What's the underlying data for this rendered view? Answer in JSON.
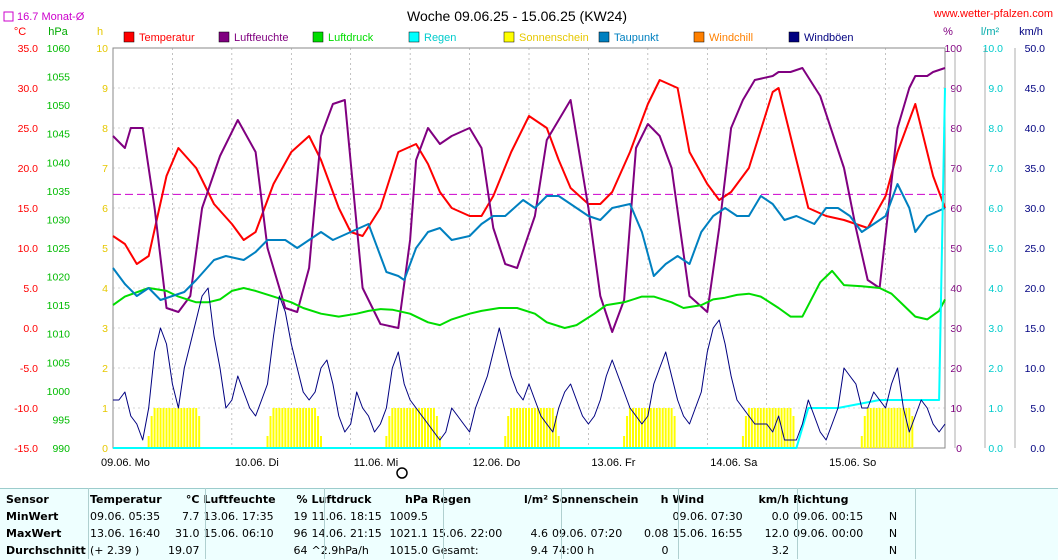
{
  "title": "Woche 09.06.25 - 15.06.25 (KW24)",
  "site": "www.wetter-pfalzen.com",
  "monthly_label": "16.7 Monat-Ø",
  "legend": [
    {
      "label": "Temperatur",
      "color": "#ff0000"
    },
    {
      "label": "Luftfeuchte",
      "color": "#800080"
    },
    {
      "label": "Luftdruck",
      "color": "#00dd00"
    },
    {
      "label": "Regen",
      "color": "#00ffff"
    },
    {
      "label": "Sonnenschein",
      "color": "#ffff00"
    },
    {
      "label": "Taupunkt",
      "color": "#0080c0"
    },
    {
      "label": "Windchill",
      "color": "#ff8000"
    },
    {
      "label": "Windböen",
      "color": "#000080"
    }
  ],
  "axis_units": {
    "temp": "°C",
    "pressure": "hPa",
    "sun": "h",
    "humidity": "%",
    "rain": "l/m²",
    "wind": "km/h"
  },
  "stats": {
    "headers": [
      "Sensor",
      "Temperatur",
      "°C",
      "Luftfeuchte",
      "%",
      "Luftdruck",
      "hPa",
      "Regen",
      "l/m²",
      "Sonnenschein",
      "h",
      "Wind",
      "km/h",
      "Richtung"
    ],
    "rows": [
      {
        "label": "MinWert",
        "temp_date": "09.06.  05:35",
        "temp": "7.7",
        "hum_date": "13.06.  17:35",
        "hum": "19",
        "press_date": "11.06.  18:15",
        "press": "1009.5",
        "rain_date": "",
        "rain": "",
        "sun_date": "",
        "sun": "",
        "wind_date": "09.06.  07:30",
        "wind": "0.0",
        "dir_date": "09.06.  00:15",
        "dir": "N"
      },
      {
        "label": "MaxWert",
        "temp_date": "13.06.  16:40",
        "temp": "31.0",
        "hum_date": "15.06.  06:10",
        "hum": "96",
        "press_date": "14.06.  21:15",
        "press": "1021.1",
        "rain_date": "15.06.  22:00",
        "rain": "4.6",
        "sun_date": "09.06.  07:20",
        "sun": "0.08",
        "wind_date": "15.06.  16:55",
        "wind": "12.0",
        "dir_date": "09.06.  00:00",
        "dir": "N"
      },
      {
        "label": "Durchschnitt",
        "temp_date": "(+ 2.39 )",
        "temp": "19.07",
        "hum_date": "",
        "hum": "64",
        "press_date": "^2.9hPa/h",
        "press": "1015.0",
        "rain_date": "Gesamt:",
        "rain": "9.4",
        "sun_date": "74:00 h",
        "sun": "0",
        "wind_date": "",
        "wind": "3.2",
        "dir_date": "",
        "dir": "N"
      }
    ]
  },
  "chart_data": {
    "type": "line",
    "title": "Woche 09.06.25 - 15.06.25 (KW24)",
    "x_labels": [
      "09.06. Mo",
      "10.06. Di",
      "11.06. Mi",
      "12.06. Do",
      "13.06. Fr",
      "14.06. Sa",
      "15.06. So"
    ],
    "x_range_days": [
      0,
      7
    ],
    "axes": {
      "temp": {
        "unit": "°C",
        "range": [
          -15,
          35
        ],
        "ticks": [
          "35.0",
          "30.0",
          "25.0",
          "20.0",
          "15.0",
          "10.0",
          "5.0",
          "0.0",
          "-5.0",
          "-10.0",
          "-15.0"
        ]
      },
      "pressure": {
        "unit": "hPa",
        "range": [
          990,
          1060
        ],
        "ticks": [
          "1060",
          "1055",
          "1050",
          "1045",
          "1040",
          "1035",
          "1030",
          "1025",
          "1020",
          "1015",
          "1010",
          "1005",
          "1000",
          "995",
          "990"
        ]
      },
      "sun": {
        "unit": "h",
        "range": [
          0,
          10
        ],
        "ticks": [
          "10",
          "9",
          "8",
          "7",
          "6",
          "5",
          "4",
          "3",
          "2",
          "1",
          "0"
        ]
      },
      "humidity": {
        "unit": "%",
        "range": [
          0,
          100
        ],
        "ticks": [
          "100",
          "90",
          "80",
          "70",
          "60",
          "50",
          "40",
          "30",
          "20",
          "10",
          "0"
        ]
      },
      "rain": {
        "unit": "l/m²",
        "range": [
          0,
          10
        ],
        "ticks": [
          "10.0",
          "9.0",
          "8.0",
          "7.0",
          "6.0",
          "5.0",
          "4.0",
          "3.0",
          "2.0",
          "1.0",
          "0.0"
        ]
      },
      "wind": {
        "unit": "km/h",
        "range": [
          0,
          50
        ],
        "ticks": [
          "50.0",
          "45.0",
          "40.0",
          "35.0",
          "30.0",
          "25.0",
          "20.0",
          "15.0",
          "10.0",
          "5.0",
          "0.0"
        ]
      }
    },
    "monthly_avg_temp": 16.7,
    "series": [
      {
        "name": "Temperatur",
        "axis": "temp",
        "color": "#ff0000",
        "x": [
          0,
          0.1,
          0.2,
          0.3,
          0.45,
          0.55,
          0.7,
          0.85,
          1.0,
          1.1,
          1.2,
          1.35,
          1.5,
          1.65,
          1.75,
          1.9,
          2.0,
          2.1,
          2.25,
          2.4,
          2.55,
          2.65,
          2.75,
          2.85,
          3.0,
          3.1,
          3.2,
          3.35,
          3.5,
          3.65,
          3.75,
          3.85,
          4.0,
          4.1,
          4.2,
          4.35,
          4.5,
          4.6,
          4.75,
          4.85,
          5.0,
          5.1,
          5.2,
          5.35,
          5.55,
          5.6,
          5.75,
          5.85,
          6.0,
          6.15,
          6.35,
          6.5,
          6.6,
          6.75,
          6.9,
          7.0
        ],
        "y": [
          11.5,
          10.5,
          8,
          9,
          19,
          22.5,
          20,
          15.5,
          13,
          11,
          12,
          18,
          22,
          24,
          21,
          15,
          12,
          11.5,
          15,
          22,
          23,
          20.5,
          17,
          15,
          14,
          14,
          16.5,
          22,
          26.5,
          25,
          21,
          17.5,
          15.5,
          15.5,
          17,
          22,
          28,
          31,
          30,
          22,
          18,
          16,
          17,
          20,
          29.5,
          30,
          21,
          15,
          14,
          13.5,
          12.5,
          16.5,
          22,
          28,
          19,
          15
        ]
      },
      {
        "name": "Luftfeuchte",
        "axis": "humidity",
        "color": "#800080",
        "x": [
          0,
          0.1,
          0.15,
          0.25,
          0.35,
          0.45,
          0.55,
          0.65,
          0.75,
          0.9,
          1.05,
          1.2,
          1.3,
          1.45,
          1.55,
          1.65,
          1.75,
          1.85,
          1.95,
          2.1,
          2.25,
          2.4,
          2.5,
          2.55,
          2.65,
          2.75,
          2.85,
          3.0,
          3.1,
          3.2,
          3.3,
          3.4,
          3.55,
          3.65,
          3.75,
          3.85,
          4.0,
          4.1,
          4.2,
          4.3,
          4.4,
          4.5,
          4.6,
          4.7,
          4.85,
          5.0,
          5.1,
          5.2,
          5.3,
          5.4,
          5.55,
          5.6,
          5.7,
          5.8,
          5.95,
          6.15,
          6.25,
          6.35,
          6.45,
          6.6,
          6.7,
          6.75,
          6.85,
          6.9,
          7.0
        ],
        "y": [
          78,
          75,
          80,
          80,
          60,
          35,
          34,
          38,
          60,
          73,
          82,
          74,
          50,
          35,
          34,
          45,
          78,
          86,
          87,
          40,
          31,
          30,
          52,
          72,
          80,
          76,
          78,
          80,
          75,
          55,
          46,
          45,
          58,
          77,
          82,
          87,
          60,
          38,
          29,
          37,
          75,
          81,
          78,
          70,
          38,
          34,
          55,
          80,
          87,
          92,
          93,
          94,
          94,
          95,
          88,
          70,
          55,
          42,
          40,
          80,
          90,
          93,
          93,
          94,
          95
        ]
      },
      {
        "name": "Luftdruck",
        "axis": "pressure",
        "color": "#00dd00",
        "x": [
          0,
          0.1,
          0.3,
          0.45,
          0.55,
          0.7,
          0.8,
          0.9,
          1.0,
          1.1,
          1.2,
          1.35,
          1.5,
          1.6,
          1.75,
          1.9,
          2.05,
          2.15,
          2.25,
          2.35,
          2.5,
          2.65,
          2.75,
          2.85,
          3.0,
          3.1,
          3.25,
          3.4,
          3.55,
          3.65,
          3.8,
          3.9,
          4.05,
          4.15,
          4.3,
          4.45,
          4.55,
          4.7,
          4.8,
          4.95,
          5.05,
          5.15,
          5.25,
          5.35,
          5.45,
          5.6,
          5.7,
          5.8,
          5.95,
          6.05,
          6.15,
          6.3,
          6.45,
          6.55,
          6.65,
          6.75,
          6.85,
          6.95,
          7.0
        ],
        "y": [
          1015,
          1016.5,
          1018,
          1017.5,
          1016.5,
          1015.5,
          1015.5,
          1016,
          1017.5,
          1018,
          1017.5,
          1016.5,
          1015.5,
          1014.5,
          1013.5,
          1013,
          1013.5,
          1014,
          1014.3,
          1014.2,
          1013.5,
          1012,
          1011.5,
          1012.5,
          1013.5,
          1014,
          1014.5,
          1014.5,
          1013.5,
          1012,
          1011,
          1011.5,
          1013.5,
          1015,
          1015.5,
          1016.5,
          1016.5,
          1015.5,
          1014.5,
          1015,
          1016,
          1016.3,
          1016.8,
          1017,
          1016.5,
          1014.5,
          1013,
          1013,
          1019,
          1021,
          1018.5,
          1018.3,
          1018,
          1017,
          1015,
          1013,
          1012.5,
          1014,
          1016
        ]
      },
      {
        "name": "Taupunkt",
        "axis": "temp",
        "color": "#0080c0",
        "x": [
          0,
          0.1,
          0.2,
          0.3,
          0.4,
          0.5,
          0.6,
          0.7,
          0.85,
          0.95,
          1.1,
          1.2,
          1.3,
          1.45,
          1.55,
          1.65,
          1.75,
          1.85,
          2.0,
          2.15,
          2.3,
          2.4,
          2.45,
          2.55,
          2.65,
          2.75,
          2.85,
          3.0,
          3.1,
          3.2,
          3.3,
          3.45,
          3.55,
          3.65,
          3.75,
          3.85,
          4.0,
          4.1,
          4.2,
          4.35,
          4.45,
          4.55,
          4.65,
          4.75,
          4.85,
          4.95,
          5.05,
          5.15,
          5.25,
          5.35,
          5.45,
          5.55,
          5.65,
          5.75,
          5.9,
          6.0,
          6.1,
          6.2,
          6.3,
          6.4,
          6.5,
          6.6,
          6.7,
          6.75,
          6.85,
          7.0
        ],
        "y": [
          7.5,
          5.5,
          4,
          5,
          3.5,
          4,
          4.5,
          6,
          8.5,
          9,
          8.5,
          9.5,
          11,
          11,
          10,
          11,
          12,
          11,
          12,
          13,
          7,
          6.5,
          6,
          10,
          12,
          12.5,
          11,
          11.5,
          13,
          14,
          14,
          16,
          15,
          16.5,
          16.5,
          15.5,
          14,
          13.5,
          15,
          15.5,
          12,
          6.5,
          8,
          9,
          8,
          12,
          14,
          15,
          14,
          14,
          16.5,
          15.5,
          13.5,
          14,
          13,
          15,
          15,
          14,
          12,
          13,
          14,
          18,
          15,
          12,
          14,
          15
        ]
      },
      {
        "name": "Regen",
        "axis": "rain",
        "color": "#00ffff",
        "x": [
          0,
          5.75,
          5.85,
          6.1,
          6.45,
          6.95,
          7.0
        ],
        "y": [
          0,
          0,
          1,
          1,
          1.2,
          1.2,
          9
        ]
      },
      {
        "name": "Windböen",
        "axis": "wind",
        "color": "#000080",
        "x": [
          0,
          0.05,
          0.1,
          0.15,
          0.2,
          0.25,
          0.3,
          0.35,
          0.4,
          0.45,
          0.5,
          0.55,
          0.6,
          0.65,
          0.7,
          0.75,
          0.8,
          0.85,
          0.9,
          0.95,
          1.0,
          1.05,
          1.1,
          1.15,
          1.2,
          1.25,
          1.3,
          1.35,
          1.4,
          1.45,
          1.5,
          1.55,
          1.6,
          1.65,
          1.7,
          1.75,
          1.8,
          1.85,
          1.9,
          1.95,
          2.0,
          2.05,
          2.1,
          2.15,
          2.2,
          2.25,
          2.3,
          2.35,
          2.4,
          2.45,
          2.5,
          2.55,
          2.6,
          2.65,
          2.7,
          2.75,
          2.8,
          2.85,
          2.9,
          2.95,
          3.0,
          3.05,
          3.1,
          3.15,
          3.2,
          3.25,
          3.3,
          3.35,
          3.4,
          3.45,
          3.5,
          3.55,
          3.6,
          3.65,
          3.7,
          3.75,
          3.8,
          3.85,
          3.9,
          3.95,
          4.0,
          4.05,
          4.1,
          4.15,
          4.2,
          4.25,
          4.3,
          4.35,
          4.4,
          4.45,
          4.5,
          4.55,
          4.6,
          4.65,
          4.7,
          4.75,
          4.8,
          4.85,
          4.9,
          4.95,
          5.0,
          5.05,
          5.1,
          5.15,
          5.2,
          5.25,
          5.3,
          5.35,
          5.4,
          5.45,
          5.5,
          5.55,
          5.6,
          5.65,
          5.7,
          5.75,
          5.8,
          5.85,
          5.9,
          5.95,
          6.0,
          6.05,
          6.1,
          6.15,
          6.2,
          6.25,
          6.3,
          6.35,
          6.4,
          6.45,
          6.5,
          6.55,
          6.6,
          6.65,
          6.7,
          6.75,
          6.8,
          6.85,
          6.9,
          6.95,
          7.0
        ],
        "y": [
          6,
          6,
          7,
          4,
          3,
          1,
          5,
          12,
          15,
          13,
          8,
          5,
          10,
          13,
          16,
          19,
          20,
          14,
          10,
          5,
          6,
          9,
          7,
          5,
          4,
          6,
          8,
          14,
          19,
          17,
          13,
          10,
          7,
          6,
          7,
          10,
          11,
          8,
          4,
          2,
          3,
          7,
          5,
          4,
          2,
          3,
          5,
          10,
          12,
          8,
          6,
          5,
          4,
          3,
          2,
          1,
          2,
          5,
          4,
          3,
          2,
          5,
          7,
          9,
          12,
          15,
          12,
          9,
          7,
          6,
          8,
          6,
          4,
          3,
          2,
          5,
          7,
          8,
          6,
          4,
          3,
          4,
          6,
          9,
          11,
          9,
          7,
          5,
          4,
          3,
          4,
          8,
          10,
          12,
          9,
          6,
          4,
          3,
          5,
          7,
          12,
          15,
          16,
          13,
          9,
          6,
          5,
          4,
          3,
          3,
          3,
          2,
          4,
          1,
          1,
          1,
          3,
          6,
          4,
          2,
          1,
          3,
          5,
          10,
          9,
          8,
          5,
          5,
          7,
          6,
          5,
          8,
          10,
          5,
          2,
          4,
          6,
          5,
          3,
          2,
          3
        ]
      }
    ],
    "sun_bars": {
      "axis": "sun",
      "days": [
        0,
        1,
        2,
        3,
        4,
        5,
        6
      ]
    }
  }
}
